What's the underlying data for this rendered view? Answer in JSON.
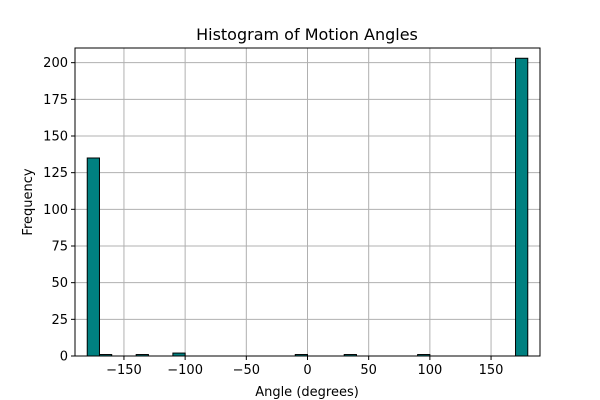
{
  "chart_data": {
    "type": "bar",
    "title": "Histogram of Motion Angles",
    "xlabel": "Angle (degrees)",
    "ylabel": "Frequency",
    "xlim": [
      -190,
      190
    ],
    "ylim": [
      0,
      210
    ],
    "xticks": [
      -150,
      -100,
      -50,
      0,
      50,
      100,
      150
    ],
    "xtick_labels": [
      "−150",
      "−100",
      "−50",
      "0",
      "50",
      "100",
      "150"
    ],
    "yticks": [
      0,
      25,
      50,
      75,
      100,
      125,
      150,
      175,
      200
    ],
    "ytick_labels": [
      "0",
      "25",
      "50",
      "75",
      "100",
      "125",
      "150",
      "175",
      "200"
    ],
    "grid": true,
    "bar_color": "#008080",
    "edge_color": "#000000",
    "bins": [
      {
        "start": -180,
        "end": -170,
        "count": 135
      },
      {
        "start": -170,
        "end": -160,
        "count": 1
      },
      {
        "start": -140,
        "end": -130,
        "count": 1
      },
      {
        "start": -110,
        "end": -100,
        "count": 2
      },
      {
        "start": -10,
        "end": 0,
        "count": 1
      },
      {
        "start": 30,
        "end": 40,
        "count": 1
      },
      {
        "start": 90,
        "end": 100,
        "count": 1
      },
      {
        "start": 170,
        "end": 180,
        "count": 203
      }
    ]
  }
}
